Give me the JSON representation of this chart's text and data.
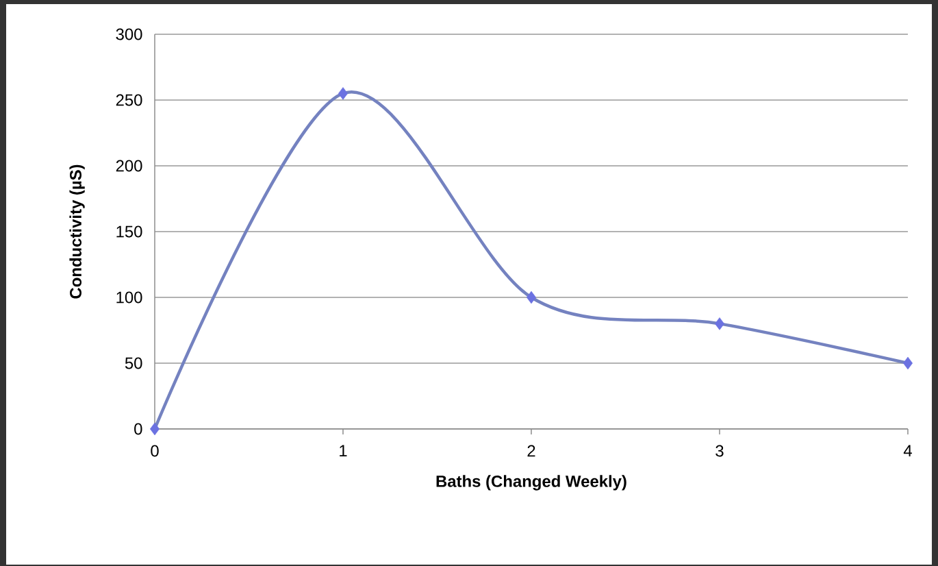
{
  "chart_data": {
    "type": "line",
    "xlabel": "Baths (Changed Weekly)",
    "ylabel": "Conductivity (µS)",
    "x": [
      0,
      1,
      2,
      3,
      4
    ],
    "series": [
      {
        "color": "#7482c0",
        "values": [
          0,
          255,
          100,
          80,
          50
        ]
      }
    ],
    "xlim": [
      0,
      4
    ],
    "xticks": [
      0,
      1,
      2,
      3,
      4
    ],
    "ylim": [
      0,
      300
    ],
    "yticks": [
      0,
      50,
      100,
      150,
      200,
      250,
      300
    ],
    "grid": "y",
    "marker": "diamond",
    "line_style": "solid"
  }
}
